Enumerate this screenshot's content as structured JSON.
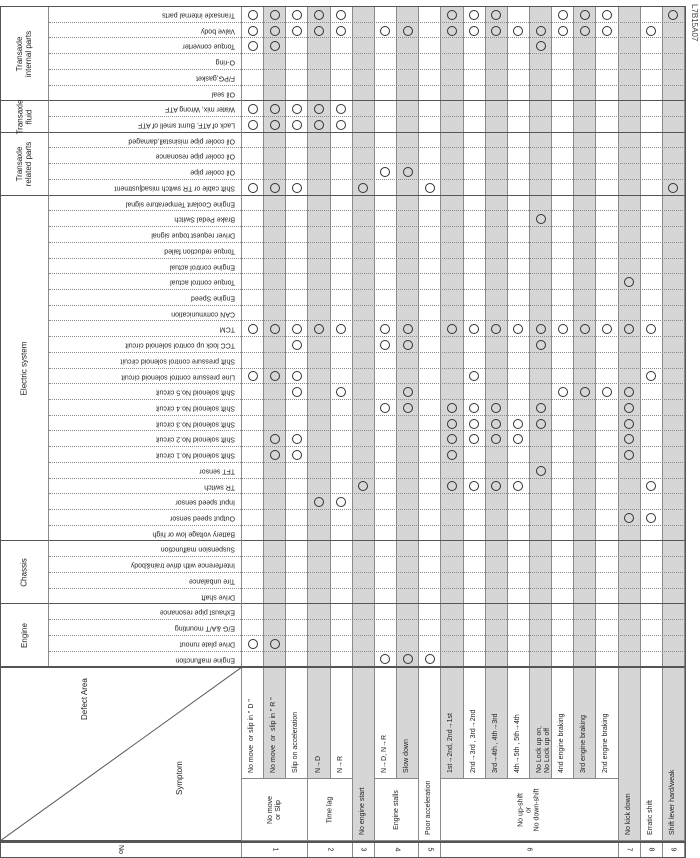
{
  "figure_id": "L7B15A07",
  "header": {
    "no_label": "No",
    "defect_area_label": "Defect Area",
    "symptom_label": "Symptom"
  },
  "colors": {
    "shade": "#d6d6d6",
    "mark": "#333333"
  },
  "symptom_groups": [
    {
      "no": "1",
      "label": "No move\nor Slip",
      "cols": [
        1,
        2,
        3
      ]
    },
    {
      "no": "2",
      "label": "Time lag",
      "cols": [
        4,
        5
      ]
    },
    {
      "no": "3",
      "label": "",
      "cols": [
        6
      ]
    },
    {
      "no": "4",
      "label": "Engine stalls",
      "cols": [
        7,
        8
      ]
    },
    {
      "no": "5",
      "label": "",
      "cols": [
        9
      ]
    },
    {
      "no": "6",
      "label": "No up-shift\nor\nNo down-shift",
      "cols": [
        10,
        11,
        12,
        13,
        14,
        15,
        16,
        17
      ]
    },
    {
      "no": "7",
      "label": "",
      "cols": [
        18
      ]
    },
    {
      "no": "8",
      "label": "",
      "cols": [
        19
      ]
    },
    {
      "no": "9",
      "label": "",
      "cols": [
        20
      ]
    }
  ],
  "symptoms": [
    "No move  or slip in \" D \"",
    "No move  or  slip in \" R \"",
    "Slip on acceleration",
    "N→D",
    "N→R",
    "No engine start",
    "N→D, N→R",
    "Slow down",
    "Poor acceleration",
    "1st→2nd, 2nd→1st",
    "2nd→3rd , 3rd→2nd",
    "3rd→4th , 4th→3rd",
    "4th→5th , 5th→4th",
    "No Lock up on,\nNo Lock up off",
    "4nd engine braking",
    "3rd engine braking",
    "2nd engine braking",
    "No kick down",
    "Erratic shift",
    "Shift lever hard/weak"
  ],
  "defect_groups": [
    {
      "label": "Transaxle\ninternal parts",
      "items": [
        {
          "label": "Transaxle internal parts",
          "marks": [
            1,
            2,
            3,
            4,
            5,
            10,
            11,
            12,
            15,
            16,
            17,
            20
          ]
        },
        {
          "label": "Valve body",
          "marks": [
            1,
            2,
            3,
            4,
            5,
            7,
            8,
            10,
            11,
            12,
            13,
            14,
            15,
            16,
            17,
            19
          ]
        },
        {
          "label": "Torque converter",
          "marks": [
            1,
            2,
            14
          ]
        },
        {
          "label": "O-ring",
          "marks": []
        },
        {
          "label": "F/PG,gasket",
          "marks": []
        },
        {
          "label": "Oil seal",
          "marks": []
        }
      ]
    },
    {
      "label": "Transaxle\nfluid",
      "items": [
        {
          "label": "Water mix, Wrong ATF",
          "marks": [
            1,
            2,
            3,
            4,
            5
          ]
        },
        {
          "label": "Lack of ATF, Burnt smell of ATF",
          "marks": [
            1,
            2,
            3,
            4,
            5
          ]
        }
      ]
    },
    {
      "label": "Transaxle\nrelated parts",
      "items": [
        {
          "label": "Oil cooler pipe misinstall,damaged",
          "marks": []
        },
        {
          "label": "Oil cooler pipe resonance",
          "marks": []
        },
        {
          "label": "Oil cooler pipe",
          "marks": [
            7,
            8
          ]
        },
        {
          "label": "Shift cable or TR switch misadjustment",
          "marks": [
            1,
            2,
            3,
            6,
            9,
            20
          ]
        }
      ]
    },
    {
      "label": "Electric system",
      "items": [
        {
          "label": "Engine Coolant Temperature signal",
          "marks": []
        },
        {
          "label": "Brake Pedal Switch",
          "marks": [
            14
          ]
        },
        {
          "label": "Driver request toque signal",
          "marks": []
        },
        {
          "label": "Torque reduction failed",
          "marks": []
        },
        {
          "label": "Engine control actual",
          "marks": []
        },
        {
          "label": "Torque control actual",
          "marks": [
            18
          ]
        },
        {
          "label": "Engine Speed",
          "marks": []
        },
        {
          "label": "CAN communication",
          "marks": []
        },
        {
          "label": "TCM",
          "marks": [
            1,
            2,
            3,
            4,
            5,
            7,
            8,
            10,
            11,
            12,
            13,
            14,
            15,
            16,
            17,
            18,
            19
          ]
        },
        {
          "label": "TCC lock up control solenoid circuit",
          "marks": [
            3,
            7,
            8,
            14
          ]
        },
        {
          "label": "Shift pressure control solenoid circuit",
          "marks": []
        },
        {
          "label": "Line pressure control solenoid circuit",
          "marks": [
            1,
            2,
            3,
            11,
            19
          ]
        },
        {
          "label": "Shift solenoid No.5 circuit",
          "marks": [
            3,
            5,
            8,
            15,
            16,
            17,
            18
          ]
        },
        {
          "label": "Shift solenoid No.4 circuit",
          "marks": [
            7,
            8,
            10,
            11,
            12,
            14,
            18
          ]
        },
        {
          "label": "Shift solenoid No.3 circuit",
          "marks": [
            10,
            11,
            12,
            13,
            14,
            18
          ]
        },
        {
          "label": "Shift solenoid No.2 circuit",
          "marks": [
            2,
            3,
            10,
            11,
            12,
            13,
            18
          ]
        },
        {
          "label": "Shift solenoid No.1 circuit",
          "marks": [
            2,
            3,
            10,
            18
          ]
        },
        {
          "label": "TFT sensor",
          "marks": [
            14
          ]
        },
        {
          "label": "TR switch",
          "marks": [
            6,
            10,
            11,
            12,
            13,
            19
          ]
        },
        {
          "label": "Input speed sensor",
          "marks": [
            4,
            5
          ]
        },
        {
          "label": "Output speed sensor",
          "marks": [
            18,
            19
          ]
        },
        {
          "label": "Battery voltage low or high",
          "marks": []
        }
      ]
    },
    {
      "label": "Chassis",
      "items": [
        {
          "label": "Suspension malfunction",
          "marks": []
        },
        {
          "label": "Interference with drive train&body",
          "marks": []
        },
        {
          "label": "Tire unbalance",
          "marks": []
        },
        {
          "label": "Drive shaft",
          "marks": []
        }
      ]
    },
    {
      "label": "Engine",
      "items": [
        {
          "label": "Exhaust pipe resonance",
          "marks": []
        },
        {
          "label": "E/G &A/T mounting",
          "marks": []
        },
        {
          "label": "Drive plate runout",
          "marks": [
            1,
            2
          ]
        },
        {
          "label": "Engine malfunction",
          "marks": [
            7,
            8,
            9
          ]
        }
      ]
    }
  ]
}
